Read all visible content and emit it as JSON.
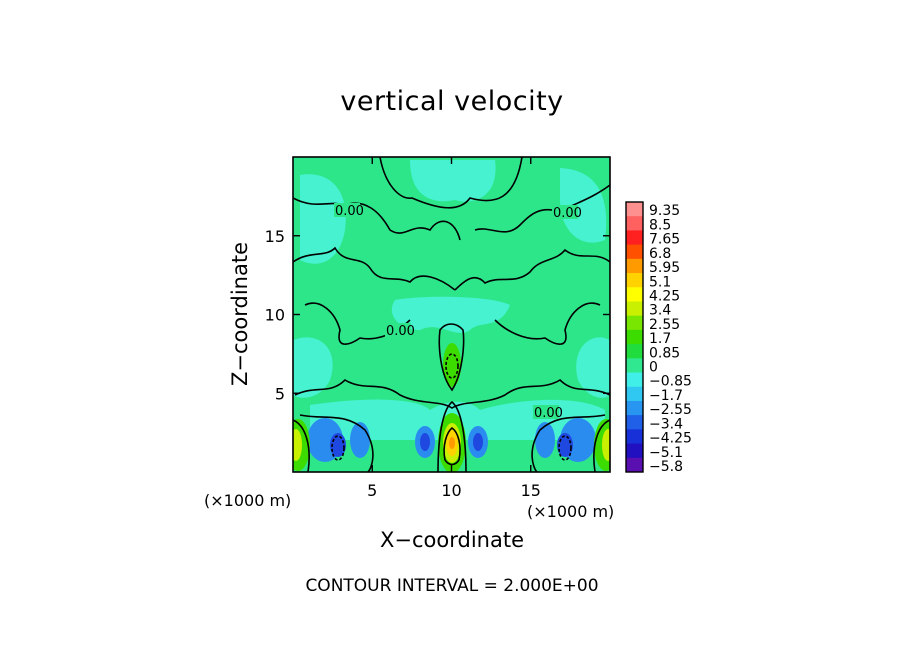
{
  "chart_data": {
    "type": "heatmap",
    "title": "vertical velocity",
    "xlabel": "X−coordinate",
    "ylabel": "Z−coordinate",
    "x_unit": "(×1000 m)",
    "y_unit": "(×1000 m)",
    "xlim": [
      0,
      20
    ],
    "ylim": [
      0,
      20
    ],
    "xticks": [
      "5",
      "10",
      "15"
    ],
    "yticks": [
      "5",
      "10",
      "15"
    ],
    "x_tick_values": [
      5,
      10,
      15
    ],
    "y_tick_values": [
      5,
      10,
      15
    ],
    "contour_labels": [
      "0.00",
      "0.00",
      "0.00",
      "0.00"
    ],
    "footer": "CONTOUR INTERVAL = 2.000E+00",
    "colorbar": {
      "labels": [
        "9.35",
        "8.5",
        "7.65",
        "6.8",
        "5.95",
        "5.1",
        "4.25",
        "3.4",
        "2.55",
        "1.7",
        "0.85",
        "0",
        "−0.85",
        "−1.7",
        "−2.55",
        "−3.4",
        "−4.25",
        "−5.1",
        "−5.8"
      ],
      "colors": [
        "#ff9090",
        "#ff6060",
        "#ff2020",
        "#ff5000",
        "#ff9a00",
        "#ffd200",
        "#ffff00",
        "#c8f000",
        "#78e600",
        "#3cdc00",
        "#20dc3c",
        "#30e890",
        "#40f0e8",
        "#30c8f0",
        "#2896f0",
        "#2060e8",
        "#1830d8",
        "#2010c0",
        "#5a10b0"
      ]
    }
  }
}
